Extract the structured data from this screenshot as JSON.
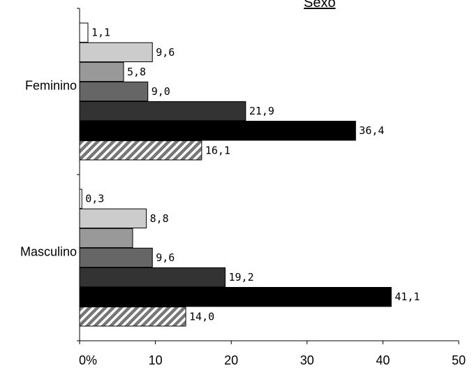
{
  "chart_data": {
    "type": "bar",
    "orientation": "horizontal",
    "title": "Sexo",
    "xlabel": "",
    "ylabel": "",
    "xlim": [
      0,
      50
    ],
    "x_ticks": [
      0,
      10,
      20,
      30,
      40,
      50
    ],
    "x_tick_labels": [
      "0%",
      "10",
      "20",
      "30",
      "40",
      "50"
    ],
    "grid": false,
    "legend": "none",
    "categories": [
      "Feminino",
      "Masculino"
    ],
    "series": [
      {
        "fill": "#ffffff",
        "pattern": "none",
        "values": [
          1.1,
          0.3
        ],
        "labels": [
          "1,1",
          "0,3"
        ]
      },
      {
        "fill": "#cccccc",
        "pattern": "none",
        "values": [
          9.6,
          8.8
        ],
        "labels": [
          "9,6",
          "8,8"
        ]
      },
      {
        "fill": "#999999",
        "pattern": "none",
        "values": [
          5.8,
          7.0
        ],
        "labels": [
          "5,8",
          ""
        ]
      },
      {
        "fill": "#666666",
        "pattern": "none",
        "values": [
          9.0,
          9.6
        ],
        "labels": [
          "9,0",
          "9,6"
        ]
      },
      {
        "fill": "#333333",
        "pattern": "none",
        "values": [
          21.9,
          19.2
        ],
        "labels": [
          "21,9",
          "19,2"
        ]
      },
      {
        "fill": "#000000",
        "pattern": "none",
        "values": [
          36.4,
          41.1
        ],
        "labels": [
          "36,4",
          "41,1"
        ]
      },
      {
        "fill": "#999999",
        "pattern": "diagonal-hatch",
        "values": [
          16.1,
          14.0
        ],
        "labels": [
          "16,1",
          "14,0"
        ]
      }
    ]
  }
}
